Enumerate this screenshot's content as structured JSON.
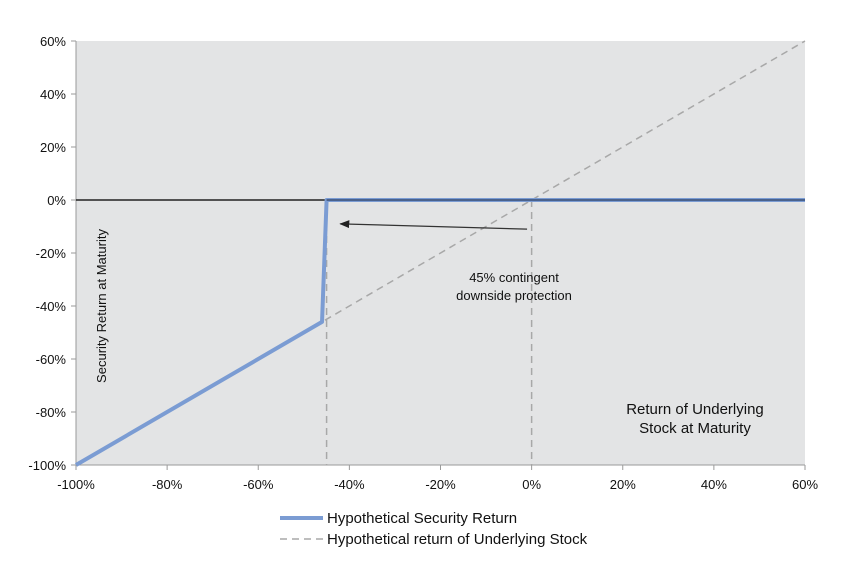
{
  "chart_data": {
    "type": "line",
    "ylabel": "Security Return at Maturity",
    "xlabel_lines": [
      "Return of Underlying",
      "Stock at Maturity"
    ],
    "xlim": [
      -100,
      60
    ],
    "ylim": [
      -100,
      60
    ],
    "x_ticks": [
      -100,
      -80,
      -60,
      -40,
      -20,
      0,
      20,
      40,
      60
    ],
    "y_ticks": [
      -100,
      -80,
      -60,
      -40,
      -20,
      0,
      20,
      40,
      60
    ],
    "x_tick_labels": [
      "-100%",
      "-80%",
      "-60%",
      "-40%",
      "-20%",
      "0%",
      "20%",
      "40%",
      "60%"
    ],
    "y_tick_labels": [
      "-100%",
      "-80%",
      "-60%",
      "-40%",
      "-20%",
      "0%",
      "20%",
      "40%",
      "60%"
    ],
    "grid": false,
    "legend_position": "bottom-center",
    "series": [
      {
        "name": "Hypothetical Security Return",
        "color": "#7B9CD3",
        "style": "solid",
        "x": [
          -100,
          -46,
          -45,
          60
        ],
        "y": [
          -100,
          -46,
          0,
          0
        ]
      },
      {
        "name": "Hypothetical return of Underlying Stock",
        "color": "#A8A8A8",
        "style": "dashed",
        "x": [
          -100,
          60
        ],
        "y": [
          -100,
          60
        ]
      }
    ],
    "reference_lines": {
      "vertical_dashed_x": [
        -45,
        0
      ],
      "horizontal_solid_y": [
        0
      ]
    },
    "annotation": {
      "lines": [
        "45% contingent",
        "downside protection"
      ],
      "arrow_tail": {
        "x": -1,
        "y": -11
      },
      "arrow_head": {
        "x": -42,
        "y": -9
      }
    },
    "colors": {
      "plot_background": "#E3E4E5",
      "zero_line": "#222222",
      "security_return_line": "#7B9CD3",
      "underlying_line": "#A8A8A8"
    }
  }
}
